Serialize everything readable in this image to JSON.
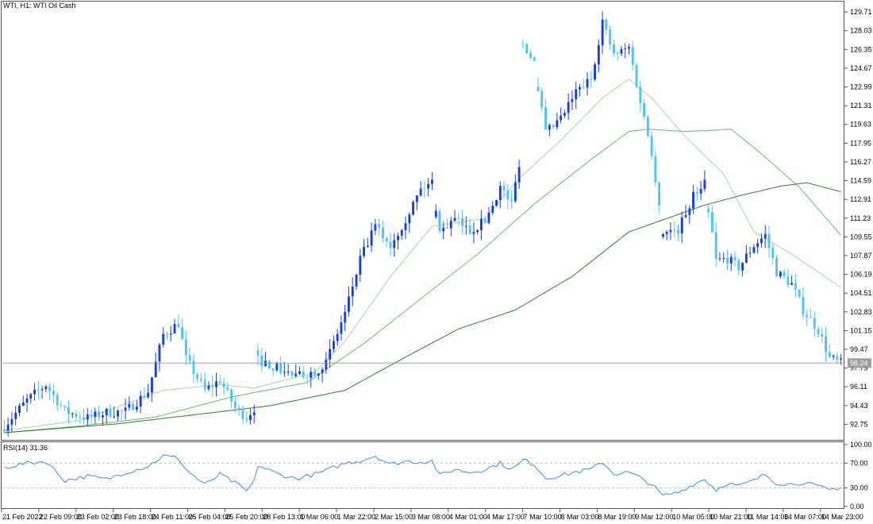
{
  "window": {
    "symbol_title": "WTI, H1:  WTI Oil Cash"
  },
  "rsi_panel": {
    "title": "RSI(14) 31.36"
  },
  "colors": {
    "bull_candle": "#1a3fd6",
    "bear_candle": "#4fc3f7",
    "ma_fast": "#a5d6a7",
    "ma_mid": "#66bb6a",
    "ma_slow": "#2e7d32",
    "rsi_line": "#3a8ee6",
    "price_line": "#9e9e9e",
    "current_price_bg": "#9e9e9e"
  },
  "chart_data": [
    {
      "type": "candlestick",
      "symbol": "WTI",
      "timeframe": "H1",
      "title": "WTI Oil Cash",
      "ylim": [
        91.5,
        130.5
      ],
      "y_ticks": [
        129.71,
        128.03,
        126.35,
        124.67,
        122.99,
        121.31,
        119.63,
        117.95,
        116.27,
        114.59,
        112.91,
        111.23,
        109.55,
        107.87,
        106.19,
        104.51,
        102.83,
        101.15,
        99.47,
        97.79,
        96.11,
        94.43,
        92.75
      ],
      "current_price": "98.24",
      "x_ticks": [
        "21 Feb 2022",
        "22 Feb 09:00",
        "23 Feb 02:00",
        "23 Feb 18:00",
        "24 Feb 11:00",
        "25 Feb 04:00",
        "25 Feb 20:00",
        "28 Feb 13:00",
        "1 Mar 06:00",
        "1 Mar 22:00",
        "2 Mar 15:00",
        "3 Mar 08:00",
        "4 Mar 01:00",
        "4 Mar 17:00",
        "7 Mar 10:00",
        "8 Mar 03:00",
        "8 Mar 19:00",
        "9 Mar 12:00",
        "10 Mar 05:00",
        "10 Mar 21:00",
        "11 Mar 14:00",
        "14 Mar 07:00",
        "14 Mar 23:00"
      ],
      "close_path": [
        [
          0,
          92.6
        ],
        [
          6,
          94.9
        ],
        [
          11,
          96.3
        ],
        [
          16,
          93.9
        ],
        [
          22,
          93.3
        ],
        [
          27,
          93.8
        ],
        [
          32,
          93.9
        ],
        [
          38,
          95.7
        ],
        [
          42,
          100.8
        ],
        [
          46,
          101.8
        ],
        [
          48,
          98.6
        ],
        [
          53,
          95.8
        ],
        [
          57,
          96.7
        ],
        [
          61,
          94.2
        ],
        [
          64,
          93.4
        ],
        [
          66,
          94.2
        ],
        [
          66.5,
          98.6
        ],
        [
          72,
          97.8
        ],
        [
          77,
          97.0
        ],
        [
          82,
          97.5
        ],
        [
          85,
          98.3
        ],
        [
          90,
          102.7
        ],
        [
          94,
          107.5
        ],
        [
          98,
          110.5
        ],
        [
          102,
          108.8
        ],
        [
          106,
          111.2
        ],
        [
          110,
          113.8
        ],
        [
          113,
          114.5
        ],
        [
          115,
          110.0
        ],
        [
          119,
          111.1
        ],
        [
          123,
          110.1
        ],
        [
          127,
          111.0
        ],
        [
          131,
          114.0
        ],
        [
          134,
          112.5
        ],
        [
          136,
          116.2
        ],
        [
          136.5,
          127.2
        ],
        [
          140,
          125.2
        ],
        [
          143,
          118.8
        ],
        [
          147,
          120.1
        ],
        [
          151,
          122.5
        ],
        [
          155,
          123.7
        ],
        [
          158,
          128.9
        ],
        [
          161,
          125.8
        ],
        [
          165,
          126.5
        ],
        [
          168,
          121.7
        ],
        [
          171,
          117.2
        ],
        [
          174,
          110.0
        ],
        [
          178,
          110.2
        ],
        [
          182,
          113.2
        ],
        [
          185,
          114.6
        ],
        [
          188,
          107.4
        ],
        [
          191,
          107.6
        ],
        [
          194,
          106.8
        ],
        [
          198,
          108.8
        ],
        [
          201,
          109.7
        ],
        [
          204,
          106.4
        ],
        [
          208,
          105.3
        ],
        [
          211,
          103.0
        ],
        [
          215,
          101.2
        ],
        [
          218,
          98.7
        ],
        [
          221,
          98.24
        ]
      ],
      "moving_averages": [
        {
          "id": "ma_fast",
          "points": [
            [
              0,
              92.2
            ],
            [
              20,
              93.1
            ],
            [
              42,
              95.8
            ],
            [
              57,
              96.3
            ],
            [
              66,
              96.0
            ],
            [
              82,
              97.4
            ],
            [
              90,
              100.2
            ],
            [
              102,
              106.0
            ],
            [
              113,
              110.5
            ],
            [
              127,
              111.2
            ],
            [
              136,
              114.8
            ],
            [
              147,
              118.2
            ],
            [
              158,
              122.0
            ],
            [
              165,
              123.7
            ],
            [
              171,
              122.0
            ],
            [
              180,
              118.5
            ],
            [
              190,
              115.2
            ],
            [
              198,
              110.0
            ],
            [
              208,
              108.0
            ],
            [
              215,
              106.4
            ],
            [
              221,
              105.0
            ]
          ]
        },
        {
          "id": "ma_mid",
          "points": [
            [
              0,
              92.0
            ],
            [
              20,
              92.6
            ],
            [
              40,
              93.4
            ],
            [
              60,
              95.2
            ],
            [
              80,
              96.5
            ],
            [
              95,
              100.0
            ],
            [
              110,
              104.0
            ],
            [
              125,
              108.0
            ],
            [
              140,
              112.5
            ],
            [
              155,
              116.5
            ],
            [
              165,
              119.0
            ],
            [
              170,
              119.2
            ],
            [
              180,
              119.0
            ],
            [
              192,
              119.2
            ],
            [
              200,
              117.0
            ],
            [
              210,
              114.0
            ],
            [
              221,
              109.7
            ]
          ]
        },
        {
          "id": "ma_slow",
          "points": [
            [
              0,
              92.0
            ],
            [
              30,
              92.8
            ],
            [
              50,
              93.6
            ],
            [
              70,
              94.4
            ],
            [
              90,
              95.8
            ],
            [
              105,
              98.6
            ],
            [
              120,
              101.3
            ],
            [
              135,
              103.0
            ],
            [
              150,
              106.0
            ],
            [
              165,
              110.0
            ],
            [
              175,
              111.2
            ],
            [
              185,
              112.4
            ],
            [
              195,
              113.3
            ],
            [
              205,
              114.1
            ],
            [
              212,
              114.4
            ],
            [
              221,
              113.6
            ]
          ]
        }
      ]
    },
    {
      "type": "line",
      "title": "RSI(14) 31.36",
      "ylim": [
        0,
        100
      ],
      "y_ticks": [
        100.0,
        70.0,
        30.0,
        0.0
      ],
      "levels": [
        70,
        30
      ],
      "points": [
        [
          0,
          63
        ],
        [
          6,
          70
        ],
        [
          11,
          73
        ],
        [
          16,
          42
        ],
        [
          22,
          49
        ],
        [
          27,
          44
        ],
        [
          32,
          55
        ],
        [
          38,
          65
        ],
        [
          42,
          82
        ],
        [
          46,
          78
        ],
        [
          48,
          60
        ],
        [
          53,
          35
        ],
        [
          57,
          52
        ],
        [
          61,
          38
        ],
        [
          64,
          25
        ],
        [
          66,
          40
        ],
        [
          66.5,
          68
        ],
        [
          72,
          53
        ],
        [
          77,
          45
        ],
        [
          82,
          52
        ],
        [
          85,
          58
        ],
        [
          90,
          70
        ],
        [
          94,
          74
        ],
        [
          98,
          82
        ],
        [
          102,
          68
        ],
        [
          106,
          73
        ],
        [
          110,
          72
        ],
        [
          113,
          74
        ],
        [
          115,
          50
        ],
        [
          119,
          60
        ],
        [
          123,
          55
        ],
        [
          127,
          60
        ],
        [
          131,
          70
        ],
        [
          134,
          60
        ],
        [
          136,
          68
        ],
        [
          136.5,
          77
        ],
        [
          140,
          68
        ],
        [
          143,
          46
        ],
        [
          147,
          50
        ],
        [
          151,
          56
        ],
        [
          155,
          60
        ],
        [
          158,
          72
        ],
        [
          161,
          53
        ],
        [
          165,
          55
        ],
        [
          168,
          46
        ],
        [
          171,
          36
        ],
        [
          174,
          17
        ],
        [
          178,
          23
        ],
        [
          182,
          36
        ],
        [
          185,
          44
        ],
        [
          188,
          27
        ],
        [
          191,
          38
        ],
        [
          194,
          33
        ],
        [
          198,
          42
        ],
        [
          201,
          52
        ],
        [
          204,
          38
        ],
        [
          208,
          36
        ],
        [
          211,
          39
        ],
        [
          215,
          32
        ],
        [
          218,
          27
        ],
        [
          221,
          31.36
        ]
      ]
    }
  ]
}
